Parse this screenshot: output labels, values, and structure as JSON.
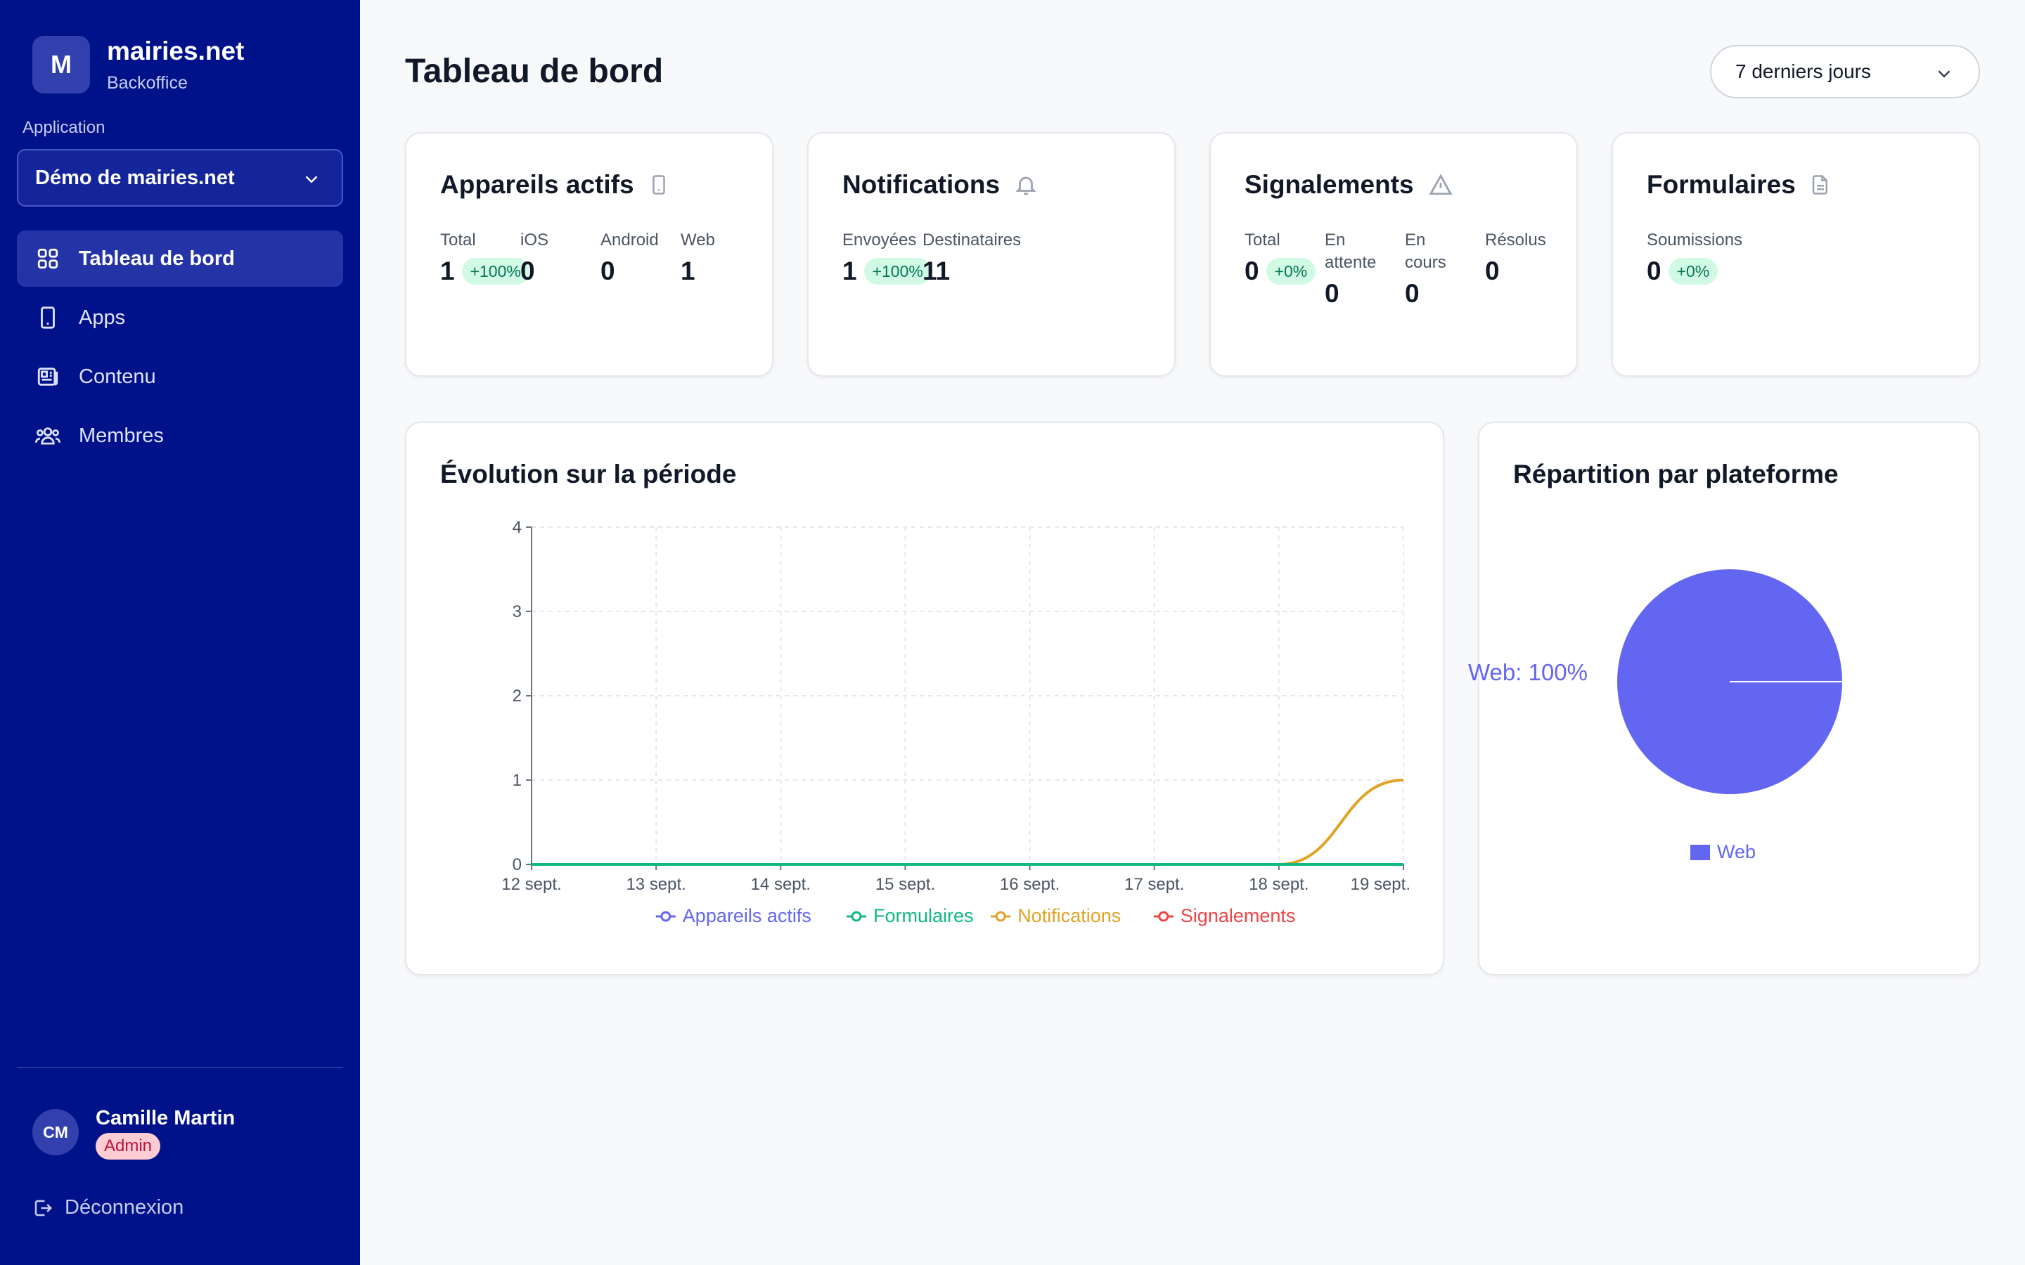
{
  "brand": {
    "logo_letter": "M",
    "name": "mairies.net",
    "subtitle": "Backoffice"
  },
  "application": {
    "label": "Application",
    "selected": "Démo de mairies.net"
  },
  "nav": [
    {
      "label": "Tableau de bord",
      "icon": "grid-icon",
      "active": true
    },
    {
      "label": "Apps",
      "icon": "phone-icon",
      "active": false
    },
    {
      "label": "Contenu",
      "icon": "newspaper-icon",
      "active": false
    },
    {
      "label": "Membres",
      "icon": "users-icon",
      "active": false
    }
  ],
  "user": {
    "initials": "CM",
    "name": "Camille Martin",
    "role": "Admin"
  },
  "logout_label": "Déconnexion",
  "header": {
    "title": "Tableau de bord",
    "range": "7 derniers jours"
  },
  "cards": {
    "devices": {
      "title": "Appareils actifs",
      "metrics": [
        {
          "label": "Total",
          "value": "1",
          "delta": "+100%"
        },
        {
          "label": "iOS",
          "value": "0"
        },
        {
          "label": "Android",
          "value": "0"
        },
        {
          "label": "Web",
          "value": "1"
        }
      ]
    },
    "notifications": {
      "title": "Notifications",
      "metrics": [
        {
          "label": "Envoyées",
          "value": "1",
          "delta": "+100%"
        },
        {
          "label": "Destinataires",
          "value": "11"
        }
      ]
    },
    "reports": {
      "title": "Signalements",
      "metrics": [
        {
          "label": "Total",
          "value": "0",
          "delta": "+0%"
        },
        {
          "label": "En attente",
          "value": "0"
        },
        {
          "label": "En cours",
          "value": "0"
        },
        {
          "label": "Résolus",
          "value": "0"
        }
      ]
    },
    "forms": {
      "title": "Formulaires",
      "metrics": [
        {
          "label": "Soumissions",
          "value": "0",
          "delta": "+0%"
        }
      ]
    }
  },
  "evolution": {
    "title": "Évolution sur la période"
  },
  "distribution": {
    "title": "Répartition par plateforme"
  },
  "colors": {
    "sidebar": "#00128a",
    "devices": "#6366f1",
    "forms": "#10b981",
    "notifications": "#e0a325",
    "reports": "#ef4444"
  },
  "chart_data": [
    {
      "type": "line",
      "title": "Évolution sur la période",
      "categories": [
        "12 sept.",
        "13 sept.",
        "14 sept.",
        "15 sept.",
        "16 sept.",
        "17 sept.",
        "18 sept.",
        "19 sept."
      ],
      "ylim": [
        0,
        4
      ],
      "yticks": [
        "0",
        "1",
        "2",
        "3",
        "4"
      ],
      "grid": true,
      "legend": "bottom",
      "series": [
        {
          "name": "Appareils actifs",
          "color": "#6366f1",
          "values": [
            0,
            0,
            0,
            0,
            0,
            0,
            0,
            0
          ]
        },
        {
          "name": "Formulaires",
          "color": "#10b981",
          "values": [
            0,
            0,
            0,
            0,
            0,
            0,
            0,
            0
          ]
        },
        {
          "name": "Notifications",
          "color": "#e0a325",
          "values": [
            0,
            0,
            0,
            0,
            0,
            0,
            0,
            1
          ]
        },
        {
          "name": "Signalements",
          "color": "#ef4444",
          "values": [
            0,
            0,
            0,
            0,
            0,
            0,
            0,
            0
          ]
        }
      ]
    },
    {
      "type": "pie",
      "title": "Répartition par plateforme",
      "legend": "bottom",
      "slices": [
        {
          "name": "Web",
          "value": 100,
          "label": "Web: 100%",
          "color": "#6366f1"
        }
      ]
    }
  ]
}
